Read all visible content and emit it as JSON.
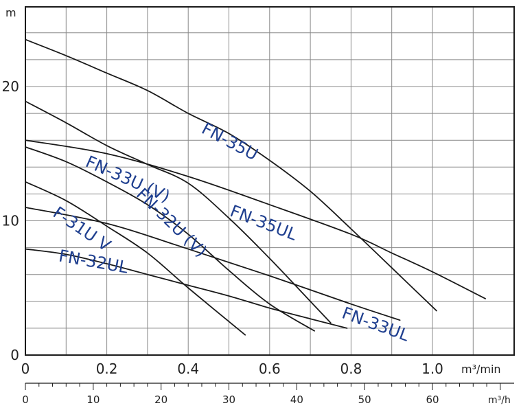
{
  "chart_data": {
    "type": "line",
    "title": "",
    "ylabel": "m",
    "xlabel": "m³/min",
    "x2label": "m³/h",
    "xlim": [
      0,
      1.2
    ],
    "ylim": [
      0,
      24
    ],
    "x_ticks": [
      0,
      0.2,
      0.4,
      0.6,
      0.8,
      1.0
    ],
    "x_tick_labels": [
      "0",
      "0.2",
      "0.4",
      "0.6",
      "0.8",
      "1.0"
    ],
    "y_ticks": [
      0,
      10,
      20
    ],
    "y_tick_labels": [
      "0",
      "10",
      "20"
    ],
    "x2_ticks": [
      0,
      10,
      20,
      30,
      40,
      50,
      60
    ],
    "x2_tick_labels": [
      "0",
      "10",
      "20",
      "30",
      "40",
      "50",
      "60"
    ],
    "grid": true,
    "series": [
      {
        "name": "FN-35U",
        "x": [
          0,
          0.1,
          0.2,
          0.3,
          0.4,
          0.5,
          0.6,
          0.7,
          0.8,
          0.9,
          1.01
        ],
        "y": [
          23.5,
          22.3,
          21.0,
          19.7,
          18.0,
          16.5,
          14.5,
          12.2,
          9.4,
          6.5,
          3.3
        ]
      },
      {
        "name": "FN-35UL",
        "x": [
          0,
          0.2,
          0.4,
          0.6,
          0.8,
          0.9,
          1.0,
          1.13
        ],
        "y": [
          16.0,
          15.0,
          13.3,
          11.2,
          9.0,
          7.6,
          6.2,
          4.2
        ]
      },
      {
        "name": "FN-33U (V)",
        "x": [
          0,
          0.1,
          0.2,
          0.3,
          0.4,
          0.5,
          0.6,
          0.7,
          0.75
        ],
        "y": [
          18.9,
          17.3,
          15.6,
          14.2,
          12.8,
          10.2,
          7.2,
          4.0,
          2.4
        ]
      },
      {
        "name": "FN-33UL",
        "x": [
          0,
          0.2,
          0.4,
          0.6,
          0.8,
          0.92
        ],
        "y": [
          11.0,
          9.8,
          7.9,
          5.9,
          3.8,
          2.6
        ]
      },
      {
        "name": "FN-32U (V)",
        "x": [
          0,
          0.1,
          0.2,
          0.3,
          0.4,
          0.5,
          0.6,
          0.71
        ],
        "y": [
          15.5,
          14.4,
          12.9,
          11.2,
          9.0,
          6.3,
          3.8,
          1.8
        ]
      },
      {
        "name": "F-31U V",
        "x": [
          0,
          0.1,
          0.2,
          0.3,
          0.4,
          0.54
        ],
        "y": [
          12.9,
          11.5,
          9.6,
          7.6,
          5.0,
          1.5
        ]
      },
      {
        "name": "FN-32UL",
        "x": [
          0,
          0.1,
          0.2,
          0.3,
          0.4,
          0.5,
          0.6,
          0.7,
          0.79
        ],
        "y": [
          7.9,
          7.5,
          6.8,
          6.0,
          5.2,
          4.4,
          3.5,
          2.7,
          2.0
        ]
      }
    ],
    "curve_labels": [
      {
        "text": "FN-35U",
        "x": 0.43,
        "y": 16.6,
        "angle": 28
      },
      {
        "text": "FN-35UL",
        "x": 0.5,
        "y": 10.4,
        "angle": 21
      },
      {
        "text": "FN-33U (V)",
        "x": 0.145,
        "y": 14.1,
        "angle": 24
      },
      {
        "text": "FN-33UL",
        "x": 0.775,
        "y": 2.8,
        "angle": 20
      },
      {
        "text": "FN-32U (V)",
        "x": 0.27,
        "y": 11.9,
        "angle": 44
      },
      {
        "text": "F-31U V",
        "x": 0.065,
        "y": 10.4,
        "angle": 34
      },
      {
        "text": "FN-32UL",
        "x": 0.08,
        "y": 7.0,
        "angle": 10
      }
    ]
  }
}
